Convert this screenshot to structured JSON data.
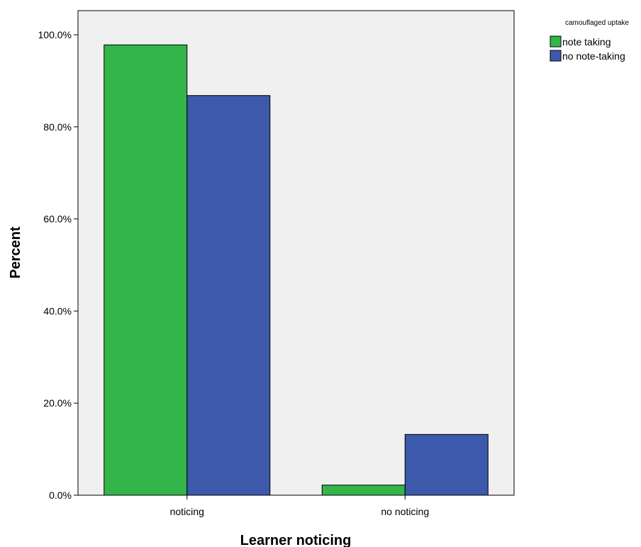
{
  "chart_data": {
    "type": "bar",
    "categories": [
      "noticing",
      "no noticing"
    ],
    "series": [
      {
        "name": "note taking",
        "values": [
          97.8,
          2.2
        ],
        "color": "#33b54a"
      },
      {
        "name": "no note-taking",
        "values": [
          86.8,
          13.2
        ],
        "color": "#3d59ab"
      }
    ],
    "xlabel": "Learner noticing",
    "ylabel": "Percent",
    "ylim": [
      0,
      100
    ],
    "yticks": [
      "0.0%",
      "20.0%",
      "40.0%",
      "60.0%",
      "80.0%",
      "100.0%"
    ],
    "ytick_values": [
      0,
      20,
      40,
      60,
      80,
      100
    ],
    "legend": {
      "title": "camouflaged uptake",
      "placement": "top-right"
    },
    "plot_background": "#f0f0f0",
    "grid": false
  }
}
